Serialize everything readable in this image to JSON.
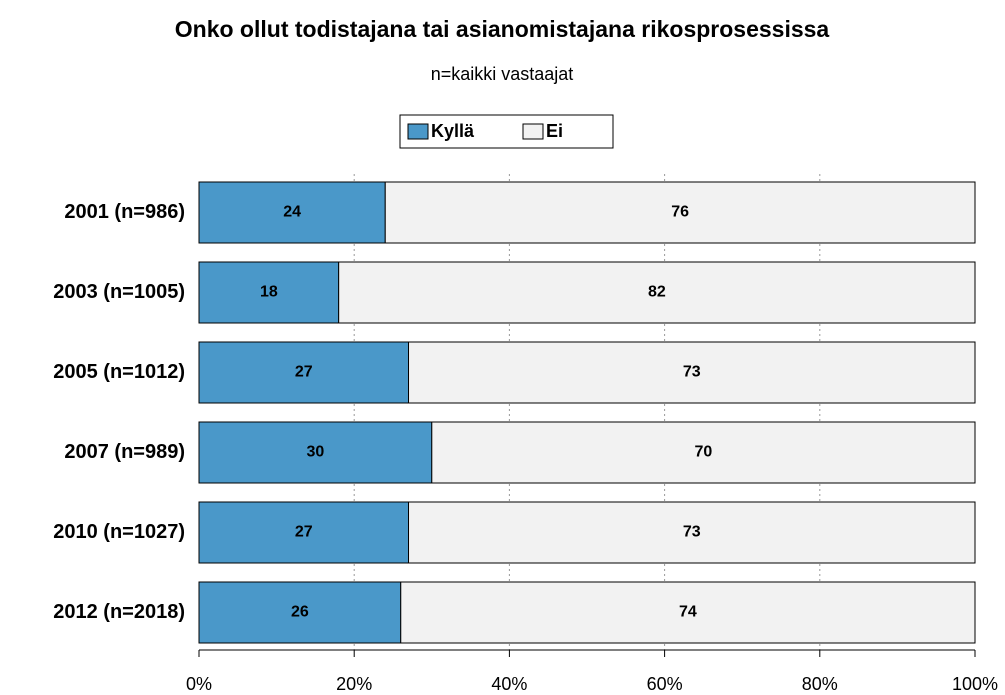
{
  "chart_data": {
    "type": "stacked-bar-horizontal",
    "title": "Onko ollut todistajana tai asianomistajana rikosprosessissa",
    "subtitle": "n=kaikki vastaajat",
    "categories": [
      "2001 (n=986)",
      "2003 (n=1005)",
      "2005 (n=1012)",
      "2007 (n=989)",
      "2010 (n=1027)",
      "2012 (n=2018)"
    ],
    "series": [
      {
        "name": "Kyllä",
        "color": "#4a98c9",
        "values": [
          24,
          18,
          27,
          30,
          27,
          26
        ]
      },
      {
        "name": "Ei",
        "color": "#f2f2f2",
        "values": [
          76,
          82,
          73,
          70,
          73,
          74
        ]
      }
    ],
    "xlim": [
      0,
      100
    ],
    "xticks": [
      {
        "value": 0,
        "label": "0%"
      },
      {
        "value": 20,
        "label": "20%"
      },
      {
        "value": 40,
        "label": "40%"
      },
      {
        "value": 60,
        "label": "60%"
      },
      {
        "value": 80,
        "label": "80%"
      },
      {
        "value": 100,
        "label": "100%"
      }
    ],
    "grid": true,
    "legend": "top"
  }
}
